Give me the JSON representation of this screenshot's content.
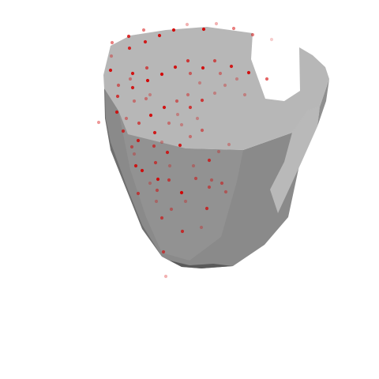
{
  "scene": {
    "background": "#ffffff",
    "colors": {
      "top_face": "#b7b7b7",
      "front_face": "#8a8a8a",
      "front_face_light": "#969696",
      "left_face": "#6e6e6e",
      "right_face": "#a9a9a9",
      "right_inner": "#bcbcbc",
      "bottom_rim": "#5a5a5a",
      "point": "#d40000"
    },
    "objects": [
      {
        "name": "gray-low-poly-mesh",
        "shape": "hollow-prism"
      },
      {
        "name": "red-point-cloud",
        "point_count": 93
      }
    ]
  }
}
